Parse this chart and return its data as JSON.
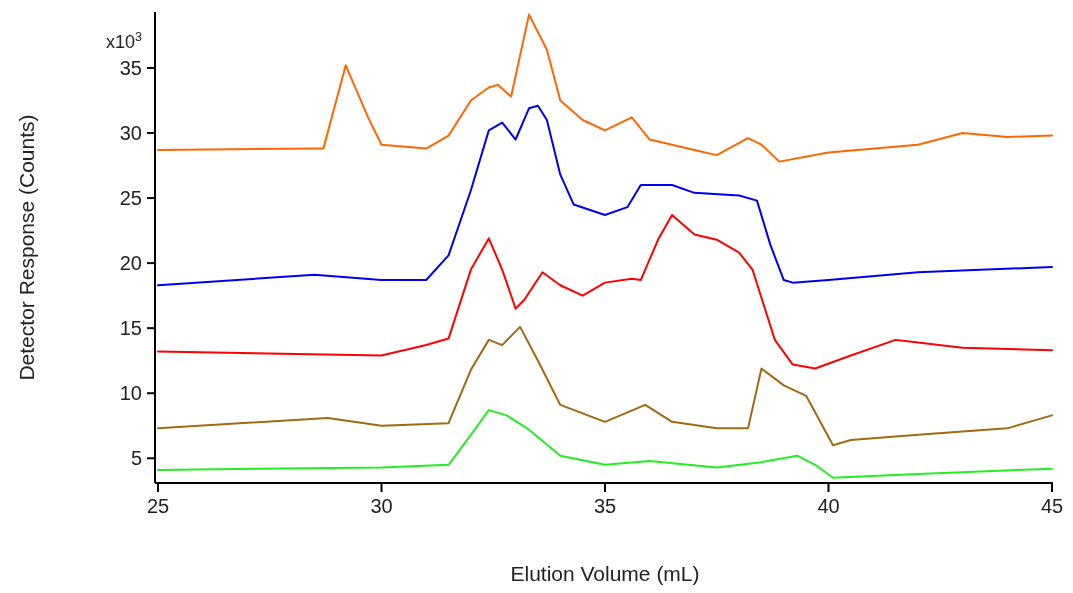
{
  "chart_data": {
    "type": "line",
    "xlabel": "Elution Volume (mL)",
    "ylabel": "Detector Response (Counts)",
    "annotations": [
      "x10$^{3}$"
    ],
    "xlim": [
      25,
      45
    ],
    "xticks": [
      25,
      30,
      35,
      40,
      45
    ],
    "ylim": [
      3.1,
      39.3
    ],
    "yticks": [
      5,
      10,
      15,
      20,
      25,
      30,
      35
    ],
    "grid": false,
    "marker": "none",
    "line_style": "solid",
    "series": [
      {
        "color": "#ff6600",
        "x": [
          25,
          28.5,
          28.7,
          29.2,
          29.7,
          30,
          31,
          31.5,
          32,
          32.4,
          32.6,
          32.9,
          33.3,
          33.7,
          34,
          34.5,
          35,
          35.6,
          36,
          37,
          37.5,
          38.2,
          38.5,
          38.9,
          40,
          42,
          43,
          44,
          45
        ],
        "values": [
          28.7,
          28.8,
          28.8,
          35.2,
          31.2,
          29.1,
          28.8,
          29.8,
          32.5,
          33.5,
          33.7,
          32.8,
          39.1,
          36.4,
          32.5,
          31.0,
          30.2,
          31.2,
          29.5,
          28.7,
          28.3,
          29.6,
          29.1,
          27.8,
          28.5,
          29.1,
          30.0,
          29.7,
          29.8
        ]
      },
      {
        "color": "#0000ee",
        "x": [
          25,
          28.5,
          30,
          31,
          31.5,
          32,
          32.4,
          32.7,
          33,
          33.3,
          33.5,
          33.7,
          34,
          34.3,
          35,
          35.5,
          35.8,
          36.5,
          37,
          38,
          38.4,
          38.7,
          39,
          39.2,
          40,
          42,
          45
        ],
        "values": [
          18.3,
          19.1,
          18.7,
          18.7,
          20.6,
          25.6,
          30.2,
          30.8,
          29.5,
          31.9,
          32.1,
          31.0,
          26.8,
          24.5,
          23.7,
          24.3,
          26.0,
          26.0,
          25.4,
          25.2,
          24.8,
          21.4,
          18.7,
          18.5,
          18.7,
          19.3,
          19.7
        ]
      },
      {
        "color": "#ff0000",
        "x": [
          25,
          30,
          31,
          31.5,
          32,
          32.4,
          32.7,
          33,
          33.2,
          33.6,
          34,
          34.5,
          35,
          35.6,
          35.8,
          36.2,
          36.5,
          37,
          37.5,
          38,
          38.3,
          38.8,
          39.2,
          39.7,
          40.5,
          41.5,
          42,
          43,
          45
        ],
        "values": [
          13.2,
          12.9,
          13.7,
          14.2,
          19.5,
          21.9,
          19.5,
          16.5,
          17.2,
          19.3,
          18.3,
          17.5,
          18.5,
          18.8,
          18.7,
          21.9,
          23.7,
          22.2,
          21.8,
          20.8,
          19.5,
          14.1,
          12.2,
          11.9,
          12.9,
          14.1,
          13.9,
          13.5,
          13.3
        ]
      },
      {
        "color": "#a06a10",
        "x": [
          25,
          28.8,
          30,
          31.5,
          32,
          32.4,
          32.7,
          33.1,
          33.5,
          34,
          35,
          35.9,
          36.5,
          37.5,
          38.2,
          38.5,
          39,
          39.5,
          40.1,
          40.5,
          42,
          44,
          45
        ],
        "values": [
          7.3,
          8.1,
          7.5,
          7.7,
          11.8,
          14.1,
          13.7,
          15.1,
          12.5,
          9.1,
          7.8,
          9.1,
          7.8,
          7.3,
          7.3,
          11.9,
          10.6,
          9.8,
          6.0,
          6.4,
          6.8,
          7.3,
          8.3
        ]
      },
      {
        "color": "#22ee22",
        "x": [
          25,
          30,
          31.5,
          32,
          32.4,
          32.8,
          33.3,
          34,
          35,
          36,
          37.5,
          38.5,
          39.3,
          39.7,
          40.1,
          42,
          45
        ],
        "values": [
          4.1,
          4.3,
          4.5,
          6.8,
          8.7,
          8.3,
          7.2,
          5.2,
          4.5,
          4.8,
          4.3,
          4.7,
          5.2,
          4.5,
          3.5,
          3.8,
          4.2
        ]
      }
    ]
  }
}
